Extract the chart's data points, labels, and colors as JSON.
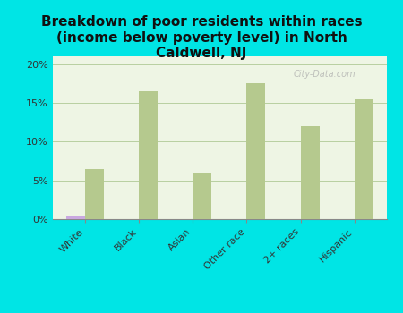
{
  "title": "Breakdown of poor residents within races\n(income below poverty level) in North\nCaldwell, NJ",
  "categories": [
    "White",
    "Black",
    "Asian",
    "Other race",
    "2+ races",
    "Hispanic"
  ],
  "north_caldwell": [
    0.3,
    0.0,
    0.0,
    0.0,
    0.0,
    0.0
  ],
  "new_jersey": [
    6.5,
    16.5,
    6.0,
    17.5,
    12.0,
    15.5
  ],
  "nc_color": "#c9a8e0",
  "nj_color": "#b5c98e",
  "background_color": "#00e5e5",
  "plot_bg_color": "#eef5e4",
  "grid_color": "#b8cfa0",
  "axis_line_color": "#888888",
  "title_fontsize": 11,
  "tick_fontsize": 8,
  "legend_fontsize": 9,
  "ylim": [
    0,
    21
  ],
  "yticks": [
    0,
    5,
    10,
    15,
    20
  ],
  "ytick_labels": [
    "0%",
    "5%",
    "10%",
    "15%",
    "20%"
  ],
  "bar_width": 0.35,
  "watermark": "City-Data.com"
}
